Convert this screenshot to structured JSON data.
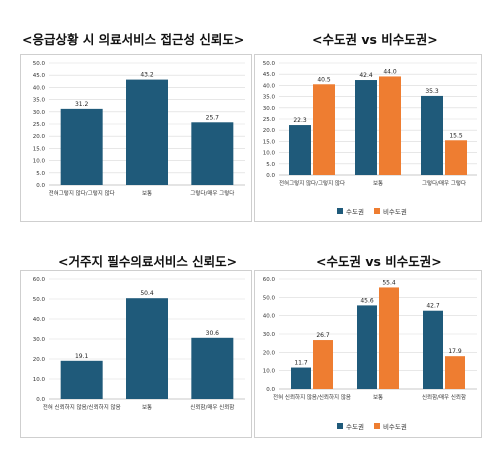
{
  "headings": {
    "top_left": "<응급상황 시 의료서비스 접근성 신뢰도>",
    "top_right": "<수도권 vs 비수도권>",
    "bottom_left": "<거주지 필수의료서비스 신뢰도>",
    "bottom_right": "<수도권 vs 비수도권>"
  },
  "colors": {
    "capital": "#1f5a7a",
    "non_capital": "#ee7d31",
    "grid": "#d9d9d9",
    "axis_text": "#333333"
  },
  "chart_data": [
    {
      "id": "emergency-overall",
      "type": "bar",
      "title": "<응급상황 시 의료서비스 접근성 신뢰도>",
      "categories": [
        "전혀그렇지 않다/그렇지 않다",
        "보통",
        "그렇다/매우 그렇다"
      ],
      "series": [
        {
          "values": [
            31.2,
            43.2,
            25.7
          ],
          "color": "#1f5a7a"
        }
      ],
      "ylim": [
        0,
        50
      ],
      "yticks": [
        "0.0",
        "5.0",
        "10.0",
        "15.0",
        "20.0",
        "25.0",
        "30.0",
        "35.0",
        "40.0",
        "45.0",
        "50.0"
      ],
      "grid": true,
      "legend": null
    },
    {
      "id": "emergency-region",
      "type": "bar",
      "title": "<수도권 vs 비수도권>",
      "categories": [
        "전혀그렇지 않다/그렇지 않다",
        "보통",
        "그렇다/매우 그렇다"
      ],
      "series": [
        {
          "name": "수도권",
          "values": [
            22.3,
            42.4,
            35.3
          ],
          "color": "#1f5a7a"
        },
        {
          "name": "비수도권",
          "values": [
            40.5,
            44.0,
            15.5
          ],
          "color": "#ee7d31"
        }
      ],
      "ylim": [
        0,
        50
      ],
      "yticks": [
        "0.0",
        "5.0",
        "10.0",
        "15.0",
        "20.0",
        "25.0",
        "30.0",
        "35.0",
        "40.0",
        "45.0",
        "50.0"
      ],
      "grid": true,
      "legend": "bottom-center"
    },
    {
      "id": "essential-overall",
      "type": "bar",
      "title": "<거주지 필수의료서비스 신뢰도>",
      "categories": [
        "전혀 신뢰하지 않음/신뢰하지 않음",
        "보통",
        "신뢰함/매우 신뢰함"
      ],
      "series": [
        {
          "values": [
            19.1,
            50.4,
            30.6
          ],
          "color": "#1f5a7a"
        }
      ],
      "ylim": [
        0,
        60
      ],
      "yticks": [
        "0.0",
        "10.0",
        "20.0",
        "30.0",
        "40.0",
        "50.0",
        "60.0"
      ],
      "grid": true,
      "legend": null
    },
    {
      "id": "essential-region",
      "type": "bar",
      "title": "<수도권 vs 비수도권>",
      "categories": [
        "전혀 신뢰하지 않음/신뢰하지 않음",
        "보통",
        "신뢰함/매우 신뢰함"
      ],
      "series": [
        {
          "name": "수도권",
          "values": [
            11.7,
            45.6,
            42.7
          ],
          "color": "#1f5a7a"
        },
        {
          "name": "비수도권",
          "values": [
            26.7,
            55.4,
            17.9
          ],
          "color": "#ee7d31"
        }
      ],
      "ylim": [
        0,
        60
      ],
      "yticks": [
        "0.0",
        "10.0",
        "20.0",
        "30.0",
        "40.0",
        "50.0",
        "60.0"
      ],
      "grid": true,
      "legend": "bottom-center"
    }
  ]
}
